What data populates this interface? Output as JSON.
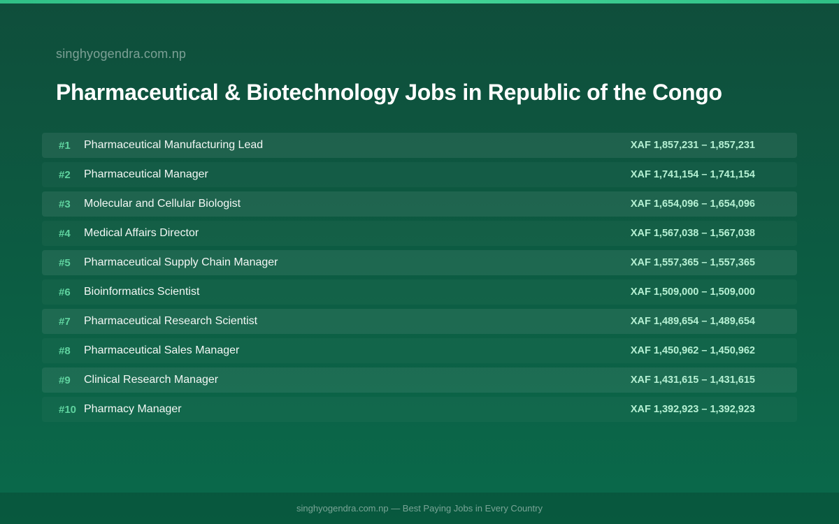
{
  "site_name": "singhyogendra.com.np",
  "title": "Pharmaceutical & Biotechnology Jobs in Republic of the Congo",
  "jobs": [
    {
      "rank": "#1",
      "title": "Pharmaceutical Manufacturing Lead",
      "salary": "XAF 1,857,231 – 1,857,231"
    },
    {
      "rank": "#2",
      "title": "Pharmaceutical Manager",
      "salary": "XAF 1,741,154 – 1,741,154"
    },
    {
      "rank": "#3",
      "title": "Molecular and Cellular Biologist",
      "salary": "XAF 1,654,096 – 1,654,096"
    },
    {
      "rank": "#4",
      "title": "Medical Affairs Director",
      "salary": "XAF 1,567,038 – 1,567,038"
    },
    {
      "rank": "#5",
      "title": "Pharmaceutical Supply Chain Manager",
      "salary": "XAF 1,557,365 – 1,557,365"
    },
    {
      "rank": "#6",
      "title": "Bioinformatics Scientist",
      "salary": "XAF 1,509,000 – 1,509,000"
    },
    {
      "rank": "#7",
      "title": "Pharmaceutical Research Scientist",
      "salary": "XAF 1,489,654 – 1,489,654"
    },
    {
      "rank": "#8",
      "title": "Pharmaceutical Sales Manager",
      "salary": "XAF 1,450,962 – 1,450,962"
    },
    {
      "rank": "#9",
      "title": "Clinical Research Manager",
      "salary": "XAF 1,431,615 – 1,431,615"
    },
    {
      "rank": "#10",
      "title": "Pharmacy Manager",
      "salary": "XAF 1,392,923 – 1,392,923"
    }
  ],
  "footer": "singhyogendra.com.np — Best Paying Jobs in Every Country",
  "colors": {
    "background": "#0c5d43",
    "accent": "#43d497",
    "rank": "#5fd39f",
    "salary": "#b5f0d3"
  }
}
